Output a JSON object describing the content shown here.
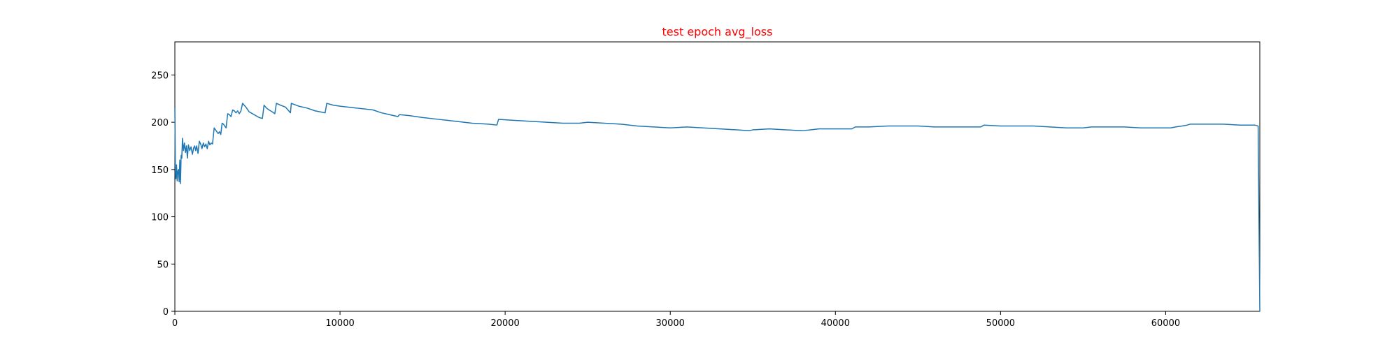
{
  "chart_data": {
    "type": "line",
    "title": "test epoch avg_loss",
    "title_color": "#ff0000",
    "xlabel": "",
    "ylabel": "",
    "xlim": [
      0,
      65700
    ],
    "ylim": [
      0,
      285
    ],
    "x_ticks": [
      0,
      10000,
      20000,
      30000,
      40000,
      50000,
      60000
    ],
    "y_ticks": [
      0,
      50,
      100,
      150,
      200,
      250
    ],
    "grid": false,
    "legend": "none",
    "series": [
      {
        "color": "#1f77b4",
        "points": [
          [
            0,
            215
          ],
          [
            30,
            150
          ],
          [
            60,
            140
          ],
          [
            100,
            155
          ],
          [
            140,
            138
          ],
          [
            180,
            148
          ],
          [
            220,
            150
          ],
          [
            260,
            137
          ],
          [
            300,
            160
          ],
          [
            340,
            135
          ],
          [
            380,
            165
          ],
          [
            420,
            162
          ],
          [
            460,
            183
          ],
          [
            520,
            170
          ],
          [
            580,
            178
          ],
          [
            640,
            168
          ],
          [
            700,
            175
          ],
          [
            760,
            162
          ],
          [
            820,
            176
          ],
          [
            900,
            170
          ],
          [
            980,
            174
          ],
          [
            1060,
            166
          ],
          [
            1140,
            173
          ],
          [
            1200,
            175
          ],
          [
            1260,
            170
          ],
          [
            1320,
            175
          ],
          [
            1400,
            167
          ],
          [
            1480,
            180
          ],
          [
            1560,
            177
          ],
          [
            1640,
            172
          ],
          [
            1720,
            178
          ],
          [
            1800,
            174
          ],
          [
            1880,
            177
          ],
          [
            1960,
            172
          ],
          [
            2040,
            180
          ],
          [
            2120,
            176
          ],
          [
            2200,
            178
          ],
          [
            2280,
            177
          ],
          [
            2380,
            194
          ],
          [
            2460,
            192
          ],
          [
            2540,
            190
          ],
          [
            2620,
            188
          ],
          [
            2700,
            190
          ],
          [
            2780,
            187
          ],
          [
            2860,
            199
          ],
          [
            2940,
            198
          ],
          [
            3020,
            196
          ],
          [
            3100,
            194
          ],
          [
            3200,
            209
          ],
          [
            3300,
            208
          ],
          [
            3400,
            206
          ],
          [
            3500,
            213
          ],
          [
            3600,
            212
          ],
          [
            3700,
            210
          ],
          [
            3800,
            212
          ],
          [
            3900,
            209
          ],
          [
            4000,
            212
          ],
          [
            4100,
            220
          ],
          [
            4300,
            216
          ],
          [
            4500,
            211
          ],
          [
            4700,
            209
          ],
          [
            4900,
            207
          ],
          [
            5100,
            205
          ],
          [
            5300,
            204
          ],
          [
            5400,
            218
          ],
          [
            5550,
            215
          ],
          [
            5700,
            213
          ],
          [
            5900,
            211
          ],
          [
            6050,
            209
          ],
          [
            6150,
            220
          ],
          [
            6400,
            218
          ],
          [
            6700,
            216
          ],
          [
            6900,
            212
          ],
          [
            7000,
            210
          ],
          [
            7050,
            220
          ],
          [
            7500,
            217
          ],
          [
            8000,
            215
          ],
          [
            8500,
            212
          ],
          [
            9100,
            210
          ],
          [
            9200,
            220
          ],
          [
            9600,
            218
          ],
          [
            10000,
            217
          ],
          [
            10500,
            216
          ],
          [
            11000,
            215
          ],
          [
            11500,
            214
          ],
          [
            12000,
            213
          ],
          [
            12500,
            210
          ],
          [
            13000,
            208
          ],
          [
            13500,
            206
          ],
          [
            13600,
            208
          ],
          [
            14200,
            207
          ],
          [
            15000,
            205
          ],
          [
            16000,
            203
          ],
          [
            17000,
            201
          ],
          [
            18000,
            199
          ],
          [
            19000,
            198
          ],
          [
            19500,
            197
          ],
          [
            19600,
            203
          ],
          [
            20500,
            202
          ],
          [
            21500,
            201
          ],
          [
            22500,
            200
          ],
          [
            23500,
            199
          ],
          [
            24500,
            199
          ],
          [
            25000,
            200
          ],
          [
            26000,
            199
          ],
          [
            27000,
            198
          ],
          [
            28000,
            196
          ],
          [
            29000,
            195
          ],
          [
            30000,
            194
          ],
          [
            31000,
            195
          ],
          [
            32000,
            194
          ],
          [
            33000,
            193
          ],
          [
            34000,
            192
          ],
          [
            34800,
            191
          ],
          [
            35000,
            192
          ],
          [
            36000,
            193
          ],
          [
            37000,
            192
          ],
          [
            38000,
            191
          ],
          [
            38500,
            192
          ],
          [
            39000,
            193
          ],
          [
            40000,
            193
          ],
          [
            41000,
            193
          ],
          [
            41200,
            195
          ],
          [
            42000,
            195
          ],
          [
            43200,
            196
          ],
          [
            44000,
            196
          ],
          [
            45000,
            196
          ],
          [
            46000,
            195
          ],
          [
            47000,
            195
          ],
          [
            48000,
            195
          ],
          [
            48800,
            195
          ],
          [
            49000,
            197
          ],
          [
            50000,
            196
          ],
          [
            51000,
            196
          ],
          [
            52000,
            196
          ],
          [
            53000,
            195
          ],
          [
            54000,
            194
          ],
          [
            55000,
            194
          ],
          [
            55500,
            195
          ],
          [
            56500,
            195
          ],
          [
            57500,
            195
          ],
          [
            58500,
            194
          ],
          [
            59500,
            194
          ],
          [
            60300,
            194
          ],
          [
            60600,
            195
          ],
          [
            61000,
            196
          ],
          [
            61300,
            197
          ],
          [
            61500,
            198
          ],
          [
            62500,
            198
          ],
          [
            63500,
            198
          ],
          [
            64500,
            197
          ],
          [
            65400,
            197
          ],
          [
            65600,
            196
          ],
          [
            65700,
            0
          ]
        ]
      }
    ]
  }
}
